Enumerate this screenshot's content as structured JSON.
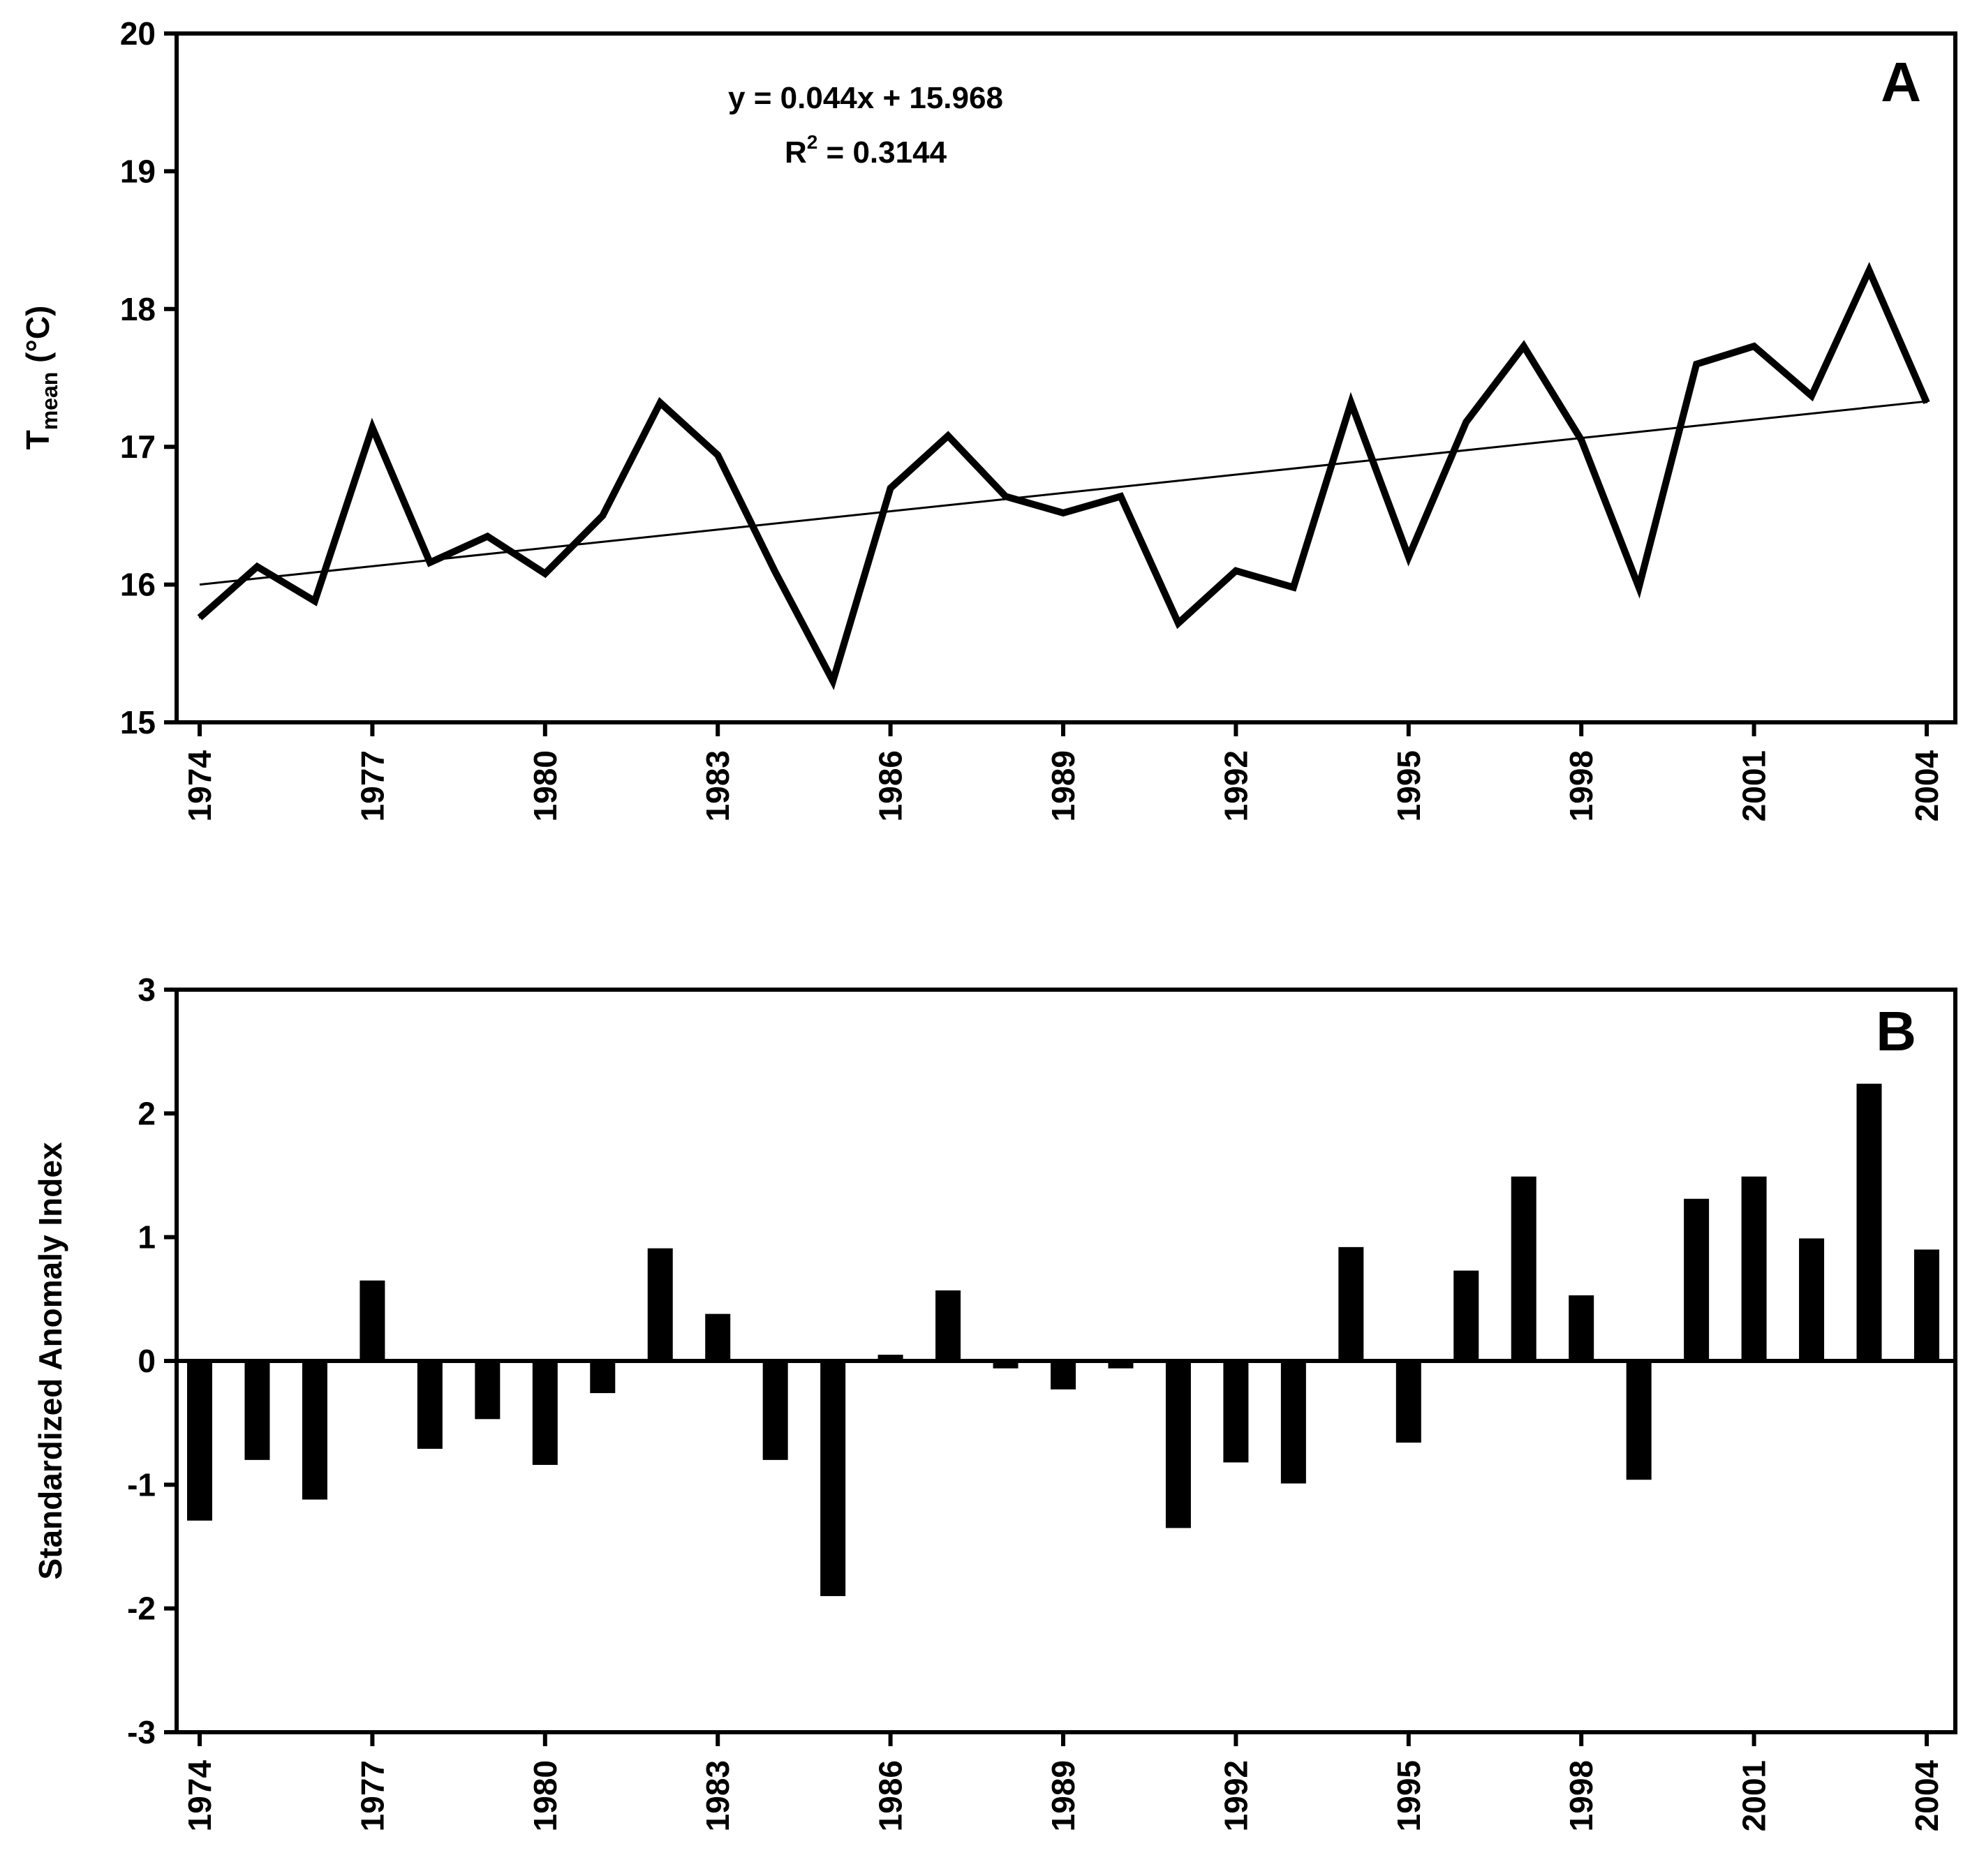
{
  "chart_data": [
    {
      "panel_label": "A",
      "type": "line",
      "title": "",
      "xlabel": "",
      "ylabel_main": "T",
      "ylabel_sub": "mean",
      "ylabel_unit": " (°C)",
      "ylim": [
        15,
        20
      ],
      "yticks": [
        15,
        16,
        17,
        18,
        19,
        20
      ],
      "xlim": [
        1974,
        2004
      ],
      "xticks": [
        "1974",
        "1977",
        "1980",
        "1983",
        "1986",
        "1989",
        "1992",
        "1995",
        "1998",
        "2001",
        "2004"
      ],
      "series": [
        {
          "name": "Tmean",
          "x": [
            1974,
            1975,
            1976,
            1977,
            1978,
            1979,
            1980,
            1981,
            1982,
            1983,
            1984,
            1985,
            1986,
            1987,
            1988,
            1989,
            1990,
            1991,
            1992,
            1993,
            1994,
            1995,
            1996,
            1997,
            1998,
            1999,
            2000,
            2001,
            2002,
            2003,
            2004
          ],
          "values": [
            15.76,
            16.13,
            15.88,
            17.14,
            16.16,
            16.35,
            16.08,
            16.5,
            17.32,
            16.94,
            16.09,
            15.3,
            16.7,
            17.08,
            16.64,
            16.52,
            16.64,
            15.72,
            16.1,
            15.98,
            17.32,
            16.2,
            17.18,
            17.73,
            17.05,
            15.98,
            17.6,
            17.73,
            17.37,
            18.28,
            17.32
          ]
        },
        {
          "name": "Linear trend",
          "x": [
            1974,
            2004
          ],
          "values": [
            16.0,
            17.33
          ]
        }
      ],
      "annotation": {
        "equation": "y = 0.044x + 15.968",
        "r2_label": "R",
        "r2_sup": "2",
        "r2_value": " = 0.3144"
      }
    },
    {
      "panel_label": "B",
      "type": "bar",
      "title": "",
      "xlabel": "",
      "ylabel": "Standardized Anomaly Index",
      "ylim": [
        -3,
        3
      ],
      "yticks": [
        -3,
        -2,
        -1,
        0,
        1,
        2,
        3
      ],
      "xlim": [
        1974,
        2004
      ],
      "xticks": [
        "1974",
        "1977",
        "1980",
        "1983",
        "1986",
        "1989",
        "1992",
        "1995",
        "1998",
        "2001",
        "2004"
      ],
      "categories": [
        1974,
        1975,
        1976,
        1977,
        1978,
        1979,
        1980,
        1981,
        1982,
        1983,
        1984,
        1985,
        1986,
        1987,
        1988,
        1989,
        1990,
        1991,
        1992,
        1993,
        1994,
        1995,
        1996,
        1997,
        1998,
        1999,
        2000,
        2001,
        2002,
        2003,
        2004
      ],
      "values": [
        -1.29,
        -0.8,
        -1.12,
        0.65,
        -0.71,
        -0.47,
        -0.84,
        -0.26,
        0.91,
        0.38,
        -0.8,
        -1.9,
        0.05,
        0.57,
        -0.06,
        -0.23,
        -0.06,
        -1.35,
        -0.82,
        -0.99,
        0.92,
        -0.66,
        0.73,
        1.49,
        0.53,
        -0.96,
        1.31,
        1.49,
        0.99,
        2.24,
        0.9
      ]
    }
  ]
}
